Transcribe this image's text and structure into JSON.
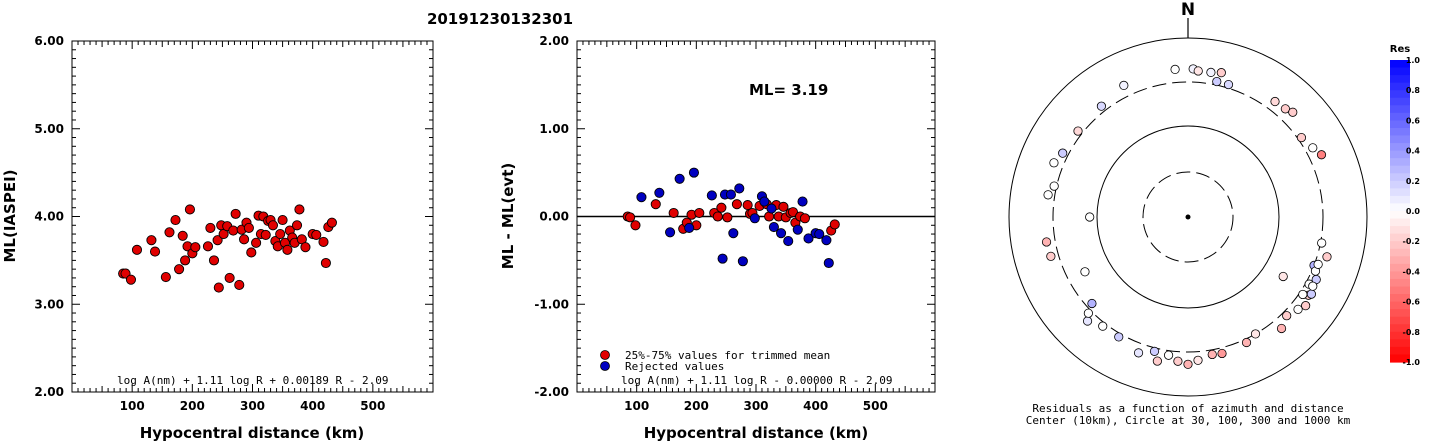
{
  "event_id": "20191230132301",
  "chart_data": [
    {
      "type": "scatter",
      "title": "",
      "xlabel": "Hypocentral distance (km)",
      "ylabel": "ML(IASPEI)",
      "xlim": [
        0,
        600
      ],
      "ylim": [
        2.0,
        6.0
      ],
      "x_ticks": [
        "100",
        "200",
        "300",
        "400",
        "500"
      ],
      "y_ticks": [
        "2.00",
        "3.00",
        "4.00",
        "5.00",
        "6.00"
      ],
      "formula": "log A(nm) + 1.11 log R + 0.00189 R - 2.09",
      "series": [
        {
          "color": "#e00000",
          "points": [
            [
              85,
              3.35
            ],
            [
              89,
              3.35
            ],
            [
              98,
              3.28
            ],
            [
              108,
              3.62
            ],
            [
              132,
              3.73
            ],
            [
              138,
              3.6
            ],
            [
              156,
              3.31
            ],
            [
              162,
              3.82
            ],
            [
              172,
              3.96
            ],
            [
              178,
              3.4
            ],
            [
              184,
              3.78
            ],
            [
              188,
              3.5
            ],
            [
              192,
              3.66
            ],
            [
              196,
              4.08
            ],
            [
              200,
              3.58
            ],
            [
              205,
              3.65
            ],
            [
              226,
              3.66
            ],
            [
              230,
              3.87
            ],
            [
              236,
              3.5
            ],
            [
              242,
              3.73
            ],
            [
              244,
              3.19
            ],
            [
              248,
              3.9
            ],
            [
              252,
              3.8
            ],
            [
              258,
              3.89
            ],
            [
              262,
              3.3
            ],
            [
              268,
              3.84
            ],
            [
              272,
              4.03
            ],
            [
              278,
              3.22
            ],
            [
              282,
              3.85
            ],
            [
              286,
              3.74
            ],
            [
              290,
              3.93
            ],
            [
              294,
              3.87
            ],
            [
              298,
              3.59
            ],
            [
              306,
              3.7
            ],
            [
              310,
              4.01
            ],
            [
              314,
              3.8
            ],
            [
              318,
              4.0
            ],
            [
              322,
              3.79
            ],
            [
              326,
              3.95
            ],
            [
              330,
              3.96
            ],
            [
              334,
              3.9
            ],
            [
              338,
              3.72
            ],
            [
              342,
              3.66
            ],
            [
              346,
              3.8
            ],
            [
              350,
              3.96
            ],
            [
              354,
              3.7
            ],
            [
              358,
              3.62
            ],
            [
              362,
              3.84
            ],
            [
              366,
              3.76
            ],
            [
              370,
              3.7
            ],
            [
              374,
              3.9
            ],
            [
              378,
              4.08
            ],
            [
              382,
              3.74
            ],
            [
              388,
              3.65
            ],
            [
              400,
              3.8
            ],
            [
              406,
              3.79
            ],
            [
              418,
              3.71
            ],
            [
              422,
              3.47
            ],
            [
              426,
              3.88
            ],
            [
              432,
              3.93
            ]
          ]
        }
      ]
    },
    {
      "type": "scatter",
      "title": "",
      "xlabel": "Hypocentral distance (km)",
      "ylabel": "ML - ML(evt)",
      "xlim": [
        0,
        600
      ],
      "ylim": [
        -2.0,
        2.0
      ],
      "x_ticks": [
        "100",
        "200",
        "300",
        "400",
        "500"
      ],
      "y_ticks": [
        "-2.00",
        "-1.00",
        "0.00",
        "1.00",
        "2.00"
      ],
      "annotation": "ML= 3.19",
      "formula": "log A(nm) + 1.11 log R - 0.00000 R - 2.09",
      "legend": [
        "25%-75% values for trimmed mean",
        "Rejected values"
      ],
      "legend_position": "bottom-left",
      "series": [
        {
          "name": "25%-75% values for trimmed mean",
          "color": "#e00000",
          "points": [
            [
              85,
              0.0
            ],
            [
              89,
              -0.01
            ],
            [
              98,
              -0.1
            ],
            [
              132,
              0.14
            ],
            [
              162,
              0.04
            ],
            [
              178,
              -0.14
            ],
            [
              184,
              -0.07
            ],
            [
              192,
              0.02
            ],
            [
              200,
              -0.1
            ],
            [
              205,
              0.04
            ],
            [
              230,
              0.04
            ],
            [
              236,
              0.0
            ],
            [
              242,
              0.1
            ],
            [
              252,
              -0.01
            ],
            [
              268,
              0.14
            ],
            [
              286,
              0.13
            ],
            [
              290,
              0.03
            ],
            [
              294,
              0.04
            ],
            [
              306,
              0.12
            ],
            [
              318,
              0.14
            ],
            [
              322,
              0.0
            ],
            [
              334,
              0.13
            ],
            [
              338,
              0.0
            ],
            [
              346,
              0.11
            ],
            [
              350,
              -0.01
            ],
            [
              358,
              0.04
            ],
            [
              362,
              0.05
            ],
            [
              366,
              -0.07
            ],
            [
              374,
              0.0
            ],
            [
              382,
              -0.02
            ],
            [
              426,
              -0.16
            ],
            [
              432,
              -0.09
            ]
          ]
        },
        {
          "name": "Rejected values",
          "color": "#0000c0",
          "points": [
            [
              108,
              0.22
            ],
            [
              138,
              0.27
            ],
            [
              156,
              -0.18
            ],
            [
              172,
              0.43
            ],
            [
              188,
              -0.13
            ],
            [
              196,
              0.5
            ],
            [
              226,
              0.24
            ],
            [
              244,
              -0.48
            ],
            [
              248,
              0.25
            ],
            [
              258,
              0.25
            ],
            [
              262,
              -0.19
            ],
            [
              272,
              0.32
            ],
            [
              278,
              -0.51
            ],
            [
              298,
              -0.02
            ],
            [
              310,
              0.23
            ],
            [
              314,
              0.17
            ],
            [
              326,
              0.09
            ],
            [
              330,
              -0.12
            ],
            [
              342,
              -0.19
            ],
            [
              354,
              -0.28
            ],
            [
              370,
              -0.15
            ],
            [
              378,
              0.17
            ],
            [
              388,
              -0.25
            ],
            [
              400,
              -0.19
            ],
            [
              406,
              -0.2
            ],
            [
              418,
              -0.27
            ],
            [
              422,
              -0.53
            ]
          ]
        }
      ]
    },
    {
      "type": "scatter",
      "subtype": "polar",
      "title": "N",
      "caption": "Residuals as a function of azimuth and distance",
      "caption2": "Center (10km), Circle at 30, 100, 300 and 1000 km",
      "colorbar_title": "Res",
      "colorbar_ticks": [
        "1.0",
        "0.8",
        "0.6",
        "0.4",
        "0.2",
        "0.0",
        "-0.2",
        "-0.4",
        "-0.6",
        "-0.8",
        "-1.0"
      ],
      "circles_km": [
        30,
        100,
        300,
        1000
      ],
      "points_azimuth_deg_distance_km_residual": [
        [
          -38,
          350,
          0.15
        ],
        [
          -26,
          410,
          0.05
        ],
        [
          -5,
          430,
          0.0
        ],
        [
          2,
          430,
          0.05
        ],
        [
          4,
          410,
          -0.1
        ],
        [
          9,
          410,
          0.05
        ],
        [
          13,
          430,
          -0.2
        ],
        [
          12,
          330,
          0.2
        ],
        [
          17,
          330,
          0.15
        ],
        [
          37,
          390,
          -0.15
        ],
        [
          42,
          400,
          -0.2
        ],
        [
          45,
          430,
          -0.2
        ],
        [
          55,
          330,
          -0.2
        ],
        [
          61,
          370,
          0.0
        ],
        [
          65,
          420,
          -0.5
        ],
        [
          -52,
          340,
          -0.15
        ],
        [
          -63,
          350,
          0.2
        ],
        [
          -68,
          390,
          0.0
        ],
        [
          -90,
          120,
          0.0
        ],
        [
          -77,
          320,
          0.0
        ],
        [
          -81,
          360,
          0.0
        ],
        [
          -100,
          380,
          -0.3
        ],
        [
          -106,
          370,
          -0.2
        ],
        [
          -118,
          190,
          0.0
        ],
        [
          -132,
          260,
          0.3
        ],
        [
          -136,
          390,
          0.1
        ],
        [
          -142,
          330,
          0.0
        ],
        [
          -150,
          330,
          0.2
        ],
        [
          -160,
          390,
          0.1
        ],
        [
          -166,
          330,
          0.2
        ],
        [
          -172,
          340,
          0.0
        ],
        [
          -168,
          420,
          -0.2
        ],
        [
          -176,
          390,
          -0.2
        ],
        [
          -180,
          420,
          -0.3
        ],
        [
          176,
          380,
          -0.1
        ],
        [
          170,
          340,
          -0.3
        ],
        [
          166,
          350,
          -0.4
        ],
        [
          155,
          330,
          -0.3
        ],
        [
          150,
          300,
          -0.1
        ],
        [
          122,
          170,
          -0.1
        ],
        [
          111,
          300,
          0.3
        ],
        [
          113,
          330,
          0.0
        ],
        [
          116,
          370,
          0.2
        ],
        [
          119,
          330,
          0.0
        ],
        [
          123,
          380,
          -0.2
        ],
        [
          122,
          400,
          0.2
        ],
        [
          119,
          370,
          0.0
        ],
        [
          124,
          330,
          0.0
        ],
        [
          127,
          420,
          -0.2
        ],
        [
          130,
          380,
          0.0
        ],
        [
          101,
          310,
          0.0
        ],
        [
          110,
          330,
          0.0
        ],
        [
          106,
          390,
          -0.2
        ],
        [
          135,
          340,
          -0.2
        ],
        [
          140,
          400,
          -0.3
        ],
        [
          -134,
          330,
          0.0
        ]
      ]
    }
  ]
}
